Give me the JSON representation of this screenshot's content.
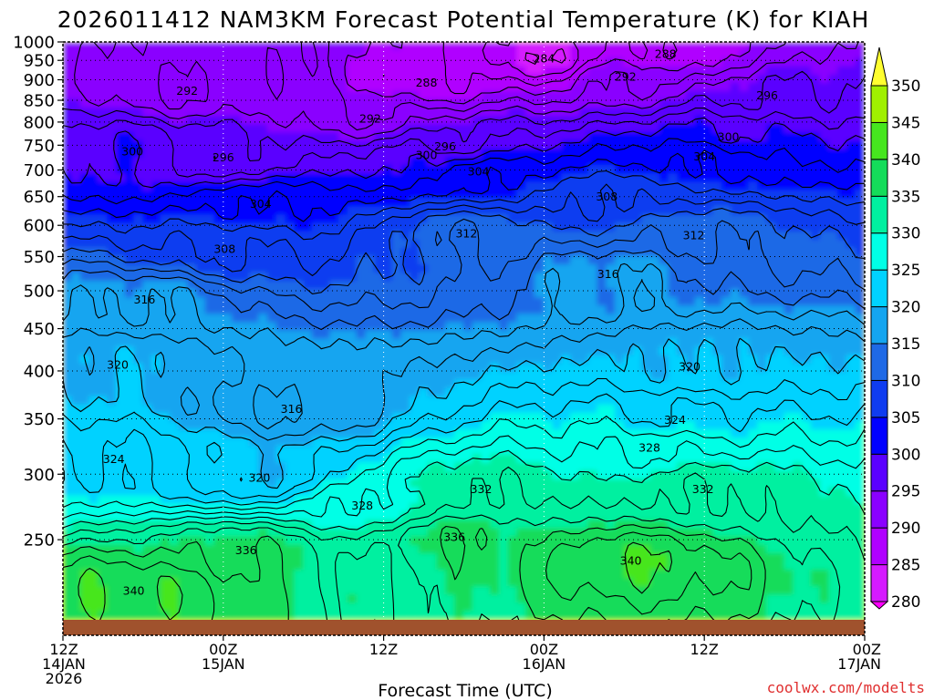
{
  "chart_data": {
    "type": "heatmap",
    "title": "2026011412 NAM3KM Forecast Potential Temperature (K) for KIAH",
    "xlabel": "Forecast Time (UTC)",
    "ylabel": "",
    "credit": "coolwx.com/modelts",
    "x_ticks": [
      {
        "hours": 0,
        "line1": "12Z",
        "line2": "14JAN",
        "line3": "2026"
      },
      {
        "hours": 12,
        "line1": "00Z",
        "line2": "15JAN",
        "line3": ""
      },
      {
        "hours": 24,
        "line1": "12Z",
        "line2": "",
        "line3": ""
      },
      {
        "hours": 36,
        "line1": "00Z",
        "line2": "16JAN",
        "line3": ""
      },
      {
        "hours": 48,
        "line1": "12Z",
        "line2": "",
        "line3": ""
      },
      {
        "hours": 60,
        "line1": "00Z",
        "line2": "17JAN",
        "line3": ""
      }
    ],
    "xlim_hours": [
      0,
      60
    ],
    "y_ticks": [
      250,
      300,
      350,
      400,
      450,
      500,
      550,
      600,
      650,
      700,
      750,
      800,
      850,
      900,
      950,
      1000
    ],
    "ylim": [
      1000,
      200
    ],
    "y_scale": "log",
    "grid": "dotted",
    "colorbar": {
      "levels": [
        280,
        285,
        290,
        295,
        300,
        305,
        310,
        315,
        320,
        325,
        330,
        335,
        340,
        345,
        350
      ],
      "colors": [
        "#ff00ff",
        "#d51aff",
        "#b000ff",
        "#8a00ff",
        "#5a00ff",
        "#0000ff",
        "#0f3cf0",
        "#1e69e6",
        "#14a5f0",
        "#00d2ff",
        "#00ffe6",
        "#00f0a0",
        "#14dc5a",
        "#46e61e",
        "#a0f000",
        "#f0ff00",
        "#ffff30"
      ]
    },
    "contour_interval": 2,
    "ground_color": "#a0522d",
    "contour_labels": [
      {
        "v": 340,
        "t": 5.3,
        "p": 217
      },
      {
        "v": 336,
        "t": 13.7,
        "p": 243
      },
      {
        "v": 324,
        "t": 3.8,
        "p": 313
      },
      {
        "v": 320,
        "t": 14.7,
        "p": 297
      },
      {
        "v": 316,
        "t": 17.1,
        "p": 360
      },
      {
        "v": 328,
        "t": 22.4,
        "p": 275
      },
      {
        "v": 336,
        "t": 29.3,
        "p": 252
      },
      {
        "v": 332,
        "t": 31.3,
        "p": 288
      },
      {
        "v": 320,
        "t": 4.1,
        "p": 407
      },
      {
        "v": 316,
        "t": 6.1,
        "p": 488
      },
      {
        "v": 308,
        "t": 12.1,
        "p": 562
      },
      {
        "v": 304,
        "t": 14.8,
        "p": 637
      },
      {
        "v": 300,
        "t": 5.2,
        "p": 737
      },
      {
        "v": 296,
        "t": 12.0,
        "p": 725
      },
      {
        "v": 292,
        "t": 9.3,
        "p": 873
      },
      {
        "v": 292,
        "t": 23.0,
        "p": 808
      },
      {
        "v": 288,
        "t": 27.2,
        "p": 893
      },
      {
        "v": 300,
        "t": 27.2,
        "p": 730
      },
      {
        "v": 296,
        "t": 28.6,
        "p": 748
      },
      {
        "v": 304,
        "t": 31.1,
        "p": 697
      },
      {
        "v": 312,
        "t": 30.2,
        "p": 587
      },
      {
        "v": 340,
        "t": 42.5,
        "p": 236
      },
      {
        "v": 328,
        "t": 43.9,
        "p": 323
      },
      {
        "v": 324,
        "t": 45.8,
        "p": 349
      },
      {
        "v": 320,
        "t": 46.9,
        "p": 405
      },
      {
        "v": 316,
        "t": 40.8,
        "p": 524
      },
      {
        "v": 312,
        "t": 47.2,
        "p": 584
      },
      {
        "v": 308,
        "t": 40.7,
        "p": 650
      },
      {
        "v": 304,
        "t": 48.0,
        "p": 727
      },
      {
        "v": 300,
        "t": 49.8,
        "p": 768
      },
      {
        "v": 296,
        "t": 52.7,
        "p": 862
      },
      {
        "v": 292,
        "t": 42.1,
        "p": 908
      },
      {
        "v": 288,
        "t": 45.1,
        "p": 968
      },
      {
        "v": 284,
        "t": 36.0,
        "p": 955
      },
      {
        "v": 332,
        "t": 47.9,
        "p": 288
      }
    ]
  }
}
